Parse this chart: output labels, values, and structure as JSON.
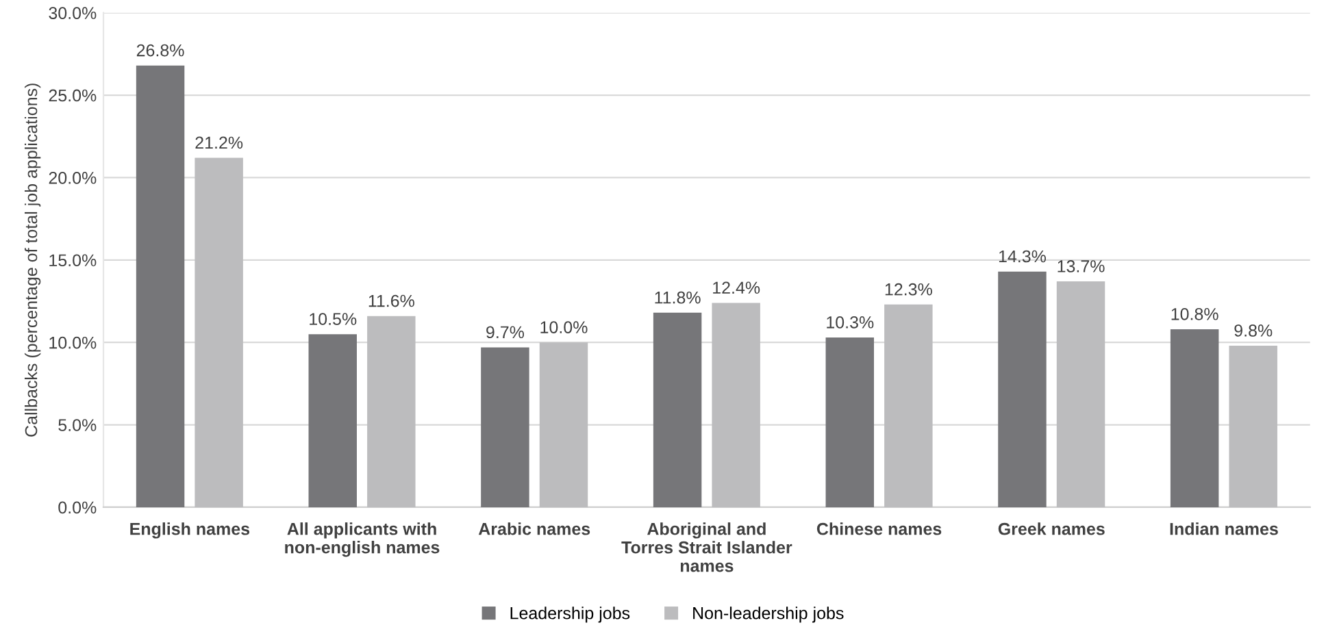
{
  "chart_data": {
    "type": "bar",
    "ylabel": "Callbacks (percentage of total job applications)",
    "categories": [
      "English names",
      "All applicants with\nnon-english names",
      "Arabic names",
      "Aboriginal and\nTorres Strait Islander\nnames",
      "Chinese names",
      "Greek names",
      "Indian names"
    ],
    "series": [
      {
        "name": "Leadership jobs",
        "color": "#767679",
        "values": [
          26.8,
          10.5,
          9.7,
          11.8,
          10.3,
          14.3,
          10.8
        ],
        "value_labels": [
          "26.8%",
          "10.5%",
          "9.7%",
          "11.8%",
          "10.3%",
          "14.3%",
          "10.8%"
        ]
      },
      {
        "name": "Non-leadership jobs",
        "color": "#bcbcbe",
        "values": [
          21.2,
          11.6,
          10.0,
          12.4,
          12.3,
          13.7,
          9.8
        ],
        "value_labels": [
          "21.2%",
          "11.6%",
          "10.0%",
          "12.4%",
          "12.3%",
          "13.7%",
          "9.8%"
        ]
      }
    ],
    "ylim": [
      0,
      30
    ],
    "yticks": [
      {
        "value": 0,
        "label": "0.0%"
      },
      {
        "value": 5,
        "label": "5.0%"
      },
      {
        "value": 10,
        "label": "10.0%"
      },
      {
        "value": 15,
        "label": "15.0%"
      },
      {
        "value": 20,
        "label": "20.0%"
      },
      {
        "value": 25,
        "label": "25.0%"
      },
      {
        "value": 30,
        "label": "30.0%"
      }
    ],
    "grid": "y",
    "legend": "bottom"
  }
}
